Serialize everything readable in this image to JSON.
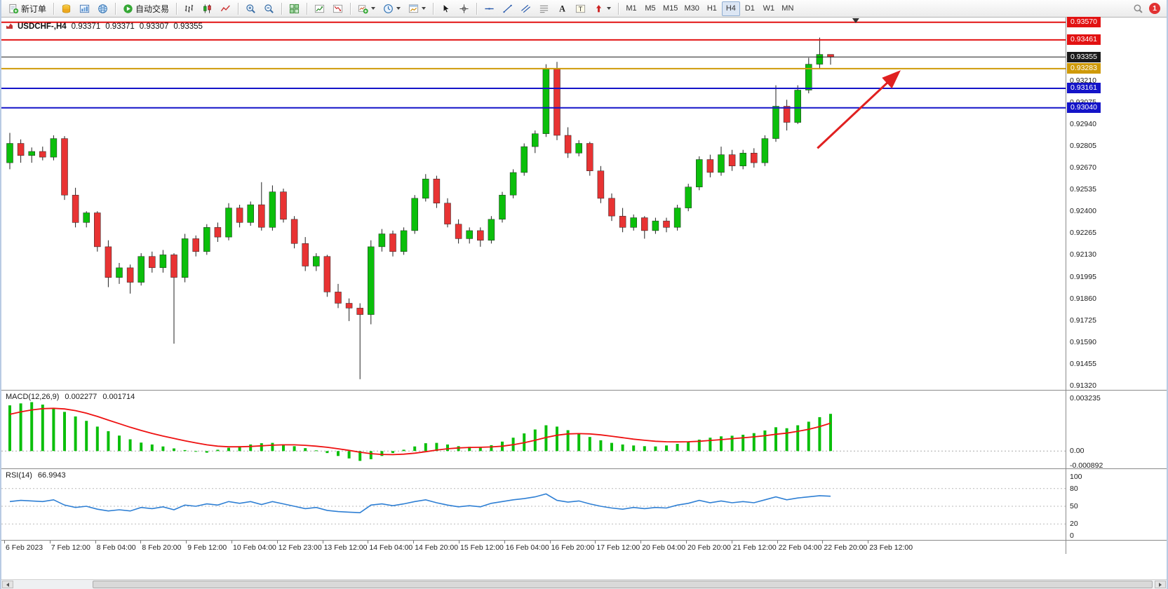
{
  "toolbar": {
    "notification_count": "1",
    "groups": [
      {
        "items": [
          {
            "name": "new-order-button",
            "icon": "new-order",
            "label": "新订单"
          }
        ]
      },
      {
        "items": [
          {
            "name": "market-watch-button",
            "icon": "coins"
          },
          {
            "name": "data-window-button",
            "icon": "chart-blue"
          },
          {
            "name": "web-community-button",
            "icon": "globe"
          }
        ]
      },
      {
        "items": [
          {
            "name": "autotrading-button",
            "icon": "play",
            "label": "自动交易"
          }
        ]
      },
      {
        "items": [
          {
            "name": "bar-chart-button",
            "icon": "bars"
          },
          {
            "name": "candlestick-chart-button",
            "icon": "candles"
          },
          {
            "name": "line-chart-button",
            "icon": "linechart"
          }
        ]
      },
      {
        "items": [
          {
            "name": "zoom-in-button",
            "icon": "zoom-in"
          },
          {
            "name": "zoom-out-button",
            "icon": "zoom-out"
          }
        ]
      },
      {
        "items": [
          {
            "name": "tile-windows-button",
            "icon": "tiles"
          }
        ]
      },
      {
        "items": [
          {
            "name": "indicator-up-button",
            "icon": "ind-up"
          },
          {
            "name": "indicator-down-button",
            "icon": "ind-down"
          }
        ]
      },
      {
        "items": [
          {
            "name": "add-indicator-button",
            "icon": "add-ind",
            "dropdown": true
          },
          {
            "name": "periods-button",
            "icon": "clock",
            "dropdown": true
          },
          {
            "name": "templates-button",
            "icon": "template",
            "dropdown": true
          }
        ]
      },
      {
        "items": [
          {
            "name": "cursor-button",
            "icon": "cursor"
          },
          {
            "name": "crosshair-button",
            "icon": "crosshair"
          }
        ]
      },
      {
        "items": [
          {
            "name": "hline-tool-button",
            "icon": "hline"
          },
          {
            "name": "trendline-tool-button",
            "icon": "trendline"
          },
          {
            "name": "channel-tool-button",
            "icon": "channel"
          },
          {
            "name": "fibonacci-tool-button",
            "icon": "fibo"
          },
          {
            "name": "text-tool-button",
            "icon": "text-a"
          },
          {
            "name": "label-tool-button",
            "icon": "label-t"
          },
          {
            "name": "arrows-tool-button",
            "icon": "arrow-tool",
            "dropdown": true
          }
        ]
      },
      {
        "items": [
          {
            "name": "tf-m1-button",
            "label": "M1"
          },
          {
            "name": "tf-m5-button",
            "label": "M5"
          },
          {
            "name": "tf-m15-button",
            "label": "M15"
          },
          {
            "name": "tf-m30-button",
            "label": "M30"
          },
          {
            "name": "tf-h1-button",
            "label": "H1"
          },
          {
            "name": "tf-h4-button",
            "label": "H4",
            "active": true
          },
          {
            "name": "tf-d1-button",
            "label": "D1"
          },
          {
            "name": "tf-w1-button",
            "label": "W1"
          },
          {
            "name": "tf-mn-button",
            "label": "MN"
          }
        ]
      }
    ]
  },
  "chart": {
    "info": {
      "symbol": "USDCHF-,H4",
      "open": "0.93371",
      "high": "0.93371",
      "low": "0.93307",
      "close": "0.93355"
    }
  },
  "chart_data": {
    "type": "candlestick",
    "symbol": "USDCHF-",
    "timeframe": "H4",
    "style": {
      "bull": "#0bbf0b",
      "bear": "#e83333",
      "wick": "#222222"
    },
    "price_range": {
      "max": 0.93582,
      "min": 0.9132
    },
    "price_ticks": [
      "0.93210",
      "0.93075",
      "0.92940",
      "0.92805",
      "0.92670",
      "0.92535",
      "0.92400",
      "0.92265",
      "0.92130",
      "0.91995",
      "0.91860",
      "0.91725",
      "0.91590",
      "0.91455",
      "0.91320"
    ],
    "price_badges": [
      {
        "label": "0.93570",
        "price": 0.9357,
        "color": "#e21212"
      },
      {
        "label": "0.93461",
        "price": 0.93461,
        "color": "#e21212"
      },
      {
        "label": "0.93355",
        "price": 0.93355,
        "color": "#1a1a1a"
      },
      {
        "label": "0.93283",
        "price": 0.93283,
        "color": "#cf9a08"
      },
      {
        "label": "0.93161",
        "price": 0.93161,
        "color": "#1414c8"
      },
      {
        "label": "0.93040",
        "price": 0.9304,
        "color": "#1414c8"
      }
    ],
    "hlines": [
      {
        "price": 0.9357,
        "color": "#e21212",
        "width": 2
      },
      {
        "price": 0.93461,
        "color": "#e21212",
        "width": 2
      },
      {
        "price": 0.93355,
        "color": "#1a1a1a",
        "width": 1
      },
      {
        "price": 0.93283,
        "color": "#cf9a08",
        "width": 2
      },
      {
        "price": 0.93161,
        "color": "#1414c8",
        "width": 2
      },
      {
        "price": 0.9304,
        "color": "#1414c8",
        "width": 2
      }
    ],
    "shift_marker_index": 77.3,
    "annotations": [
      {
        "type": "arrow",
        "color": "#e02020",
        "from": {
          "index": 73.8,
          "price": 0.9279
        },
        "to": {
          "index": 81.2,
          "price": 0.9326
        }
      }
    ],
    "x_labels": [
      "6 Feb 2023",
      "7 Feb 12:00",
      "8 Feb 04:00",
      "8 Feb 20:00",
      "9 Feb 12:00",
      "10 Feb 04:00",
      "12 Feb 23:00",
      "13 Feb 12:00",
      "14 Feb 04:00",
      "14 Feb 20:00",
      "15 Feb 12:00",
      "16 Feb 04:00",
      "16 Feb 20:00",
      "17 Feb 12:00",
      "20 Feb 04:00",
      "20 Feb 20:00",
      "21 Feb 12:00",
      "22 Feb 04:00",
      "22 Feb 20:00",
      "23 Feb 12:00"
    ],
    "candles": [
      [
        0.927,
        0.92885,
        0.9266,
        0.9282
      ],
      [
        0.9282,
        0.92845,
        0.927,
        0.92745
      ],
      [
        0.92745,
        0.92795,
        0.927,
        0.9277
      ],
      [
        0.9277,
        0.928,
        0.92715,
        0.92735
      ],
      [
        0.92735,
        0.9287,
        0.92715,
        0.9285
      ],
      [
        0.9285,
        0.92865,
        0.9247,
        0.925
      ],
      [
        0.925,
        0.92545,
        0.923,
        0.9233
      ],
      [
        0.9233,
        0.924,
        0.923,
        0.9239
      ],
      [
        0.9239,
        0.924,
        0.9215,
        0.9218
      ],
      [
        0.9218,
        0.9222,
        0.9193,
        0.9199
      ],
      [
        0.9199,
        0.9208,
        0.9195,
        0.9205
      ],
      [
        0.9205,
        0.9207,
        0.9189,
        0.9196
      ],
      [
        0.9196,
        0.9214,
        0.9194,
        0.9212
      ],
      [
        0.9212,
        0.9215,
        0.9202,
        0.9205
      ],
      [
        0.9205,
        0.9216,
        0.9202,
        0.9213
      ],
      [
        0.9213,
        0.9214,
        0.9158,
        0.9199
      ],
      [
        0.9199,
        0.9226,
        0.9196,
        0.9223
      ],
      [
        0.9223,
        0.9225,
        0.9212,
        0.9215
      ],
      [
        0.9215,
        0.9232,
        0.9213,
        0.923
      ],
      [
        0.923,
        0.9233,
        0.9221,
        0.9224
      ],
      [
        0.9224,
        0.9245,
        0.9222,
        0.9242
      ],
      [
        0.9242,
        0.9244,
        0.923,
        0.9233
      ],
      [
        0.9233,
        0.9246,
        0.9231,
        0.9244
      ],
      [
        0.9244,
        0.9258,
        0.9228,
        0.923
      ],
      [
        0.923,
        0.9256,
        0.9228,
        0.9252
      ],
      [
        0.9252,
        0.9254,
        0.9233,
        0.9235
      ],
      [
        0.9235,
        0.9237,
        0.9217,
        0.922
      ],
      [
        0.922,
        0.9224,
        0.9203,
        0.9206
      ],
      [
        0.9206,
        0.9214,
        0.9203,
        0.9212
      ],
      [
        0.9212,
        0.9213,
        0.9187,
        0.919
      ],
      [
        0.919,
        0.9195,
        0.918,
        0.9183
      ],
      [
        0.9183,
        0.9186,
        0.9172,
        0.918
      ],
      [
        0.918,
        0.9183,
        0.9136,
        0.9176
      ],
      [
        0.9176,
        0.9222,
        0.917,
        0.9218
      ],
      [
        0.9218,
        0.9229,
        0.9215,
        0.9226
      ],
      [
        0.9226,
        0.9228,
        0.9212,
        0.9215
      ],
      [
        0.9215,
        0.923,
        0.9213,
        0.9228
      ],
      [
        0.9228,
        0.925,
        0.9226,
        0.9248
      ],
      [
        0.9248,
        0.9263,
        0.9246,
        0.926
      ],
      [
        0.926,
        0.9262,
        0.9242,
        0.9245
      ],
      [
        0.9245,
        0.9248,
        0.923,
        0.9232
      ],
      [
        0.9232,
        0.9235,
        0.922,
        0.9223
      ],
      [
        0.9223,
        0.923,
        0.922,
        0.9228
      ],
      [
        0.9228,
        0.923,
        0.9218,
        0.9222
      ],
      [
        0.9222,
        0.9237,
        0.922,
        0.9235
      ],
      [
        0.9235,
        0.9252,
        0.9233,
        0.925
      ],
      [
        0.925,
        0.9266,
        0.9248,
        0.9264
      ],
      [
        0.9264,
        0.9282,
        0.9262,
        0.928
      ],
      [
        0.928,
        0.929,
        0.9276,
        0.9288
      ],
      [
        0.9288,
        0.9331,
        0.9286,
        0.9328
      ],
      [
        0.9328,
        0.93325,
        0.9284,
        0.9287
      ],
      [
        0.9287,
        0.9292,
        0.9273,
        0.9276
      ],
      [
        0.9276,
        0.9284,
        0.9274,
        0.9282
      ],
      [
        0.9282,
        0.9283,
        0.9262,
        0.9265
      ],
      [
        0.9265,
        0.9268,
        0.9245,
        0.9248
      ],
      [
        0.9248,
        0.9251,
        0.9234,
        0.9237
      ],
      [
        0.9237,
        0.9242,
        0.9227,
        0.923
      ],
      [
        0.923,
        0.9238,
        0.9228,
        0.9236
      ],
      [
        0.9236,
        0.9237,
        0.9223,
        0.9228
      ],
      [
        0.9228,
        0.9236,
        0.9226,
        0.9234
      ],
      [
        0.9234,
        0.9236,
        0.9227,
        0.923
      ],
      [
        0.923,
        0.9244,
        0.9228,
        0.9242
      ],
      [
        0.9242,
        0.9257,
        0.924,
        0.9255
      ],
      [
        0.9255,
        0.9274,
        0.9253,
        0.9272
      ],
      [
        0.9272,
        0.9275,
        0.9261,
        0.9264
      ],
      [
        0.9264,
        0.928,
        0.9262,
        0.9275
      ],
      [
        0.9275,
        0.9278,
        0.9265,
        0.9268
      ],
      [
        0.9268,
        0.9278,
        0.9266,
        0.9276
      ],
      [
        0.9276,
        0.9279,
        0.9267,
        0.927
      ],
      [
        0.927,
        0.9287,
        0.9268,
        0.9285
      ],
      [
        0.9285,
        0.9318,
        0.9283,
        0.9305
      ],
      [
        0.9305,
        0.9309,
        0.929,
        0.9295
      ],
      [
        0.9295,
        0.9318,
        0.9294,
        0.9315
      ],
      [
        0.9315,
        0.9335,
        0.9313,
        0.9331
      ],
      [
        0.9331,
        0.93475,
        0.9328,
        0.93371
      ],
      [
        0.93371,
        0.93371,
        0.93307,
        0.93355
      ]
    ],
    "macd": {
      "name": "MACD(12,26,9)",
      "value": "0.002277",
      "signal_value": "0.001714",
      "histogram_color": "#0bbf0b",
      "signal_color": "#ee1111",
      "scale": {
        "max": 0.003235,
        "min": -0.000892
      },
      "axis": [
        {
          "label": "0.003235",
          "value": 0.003235
        },
        {
          "label": "0.00",
          "value": 0
        },
        {
          "label": "-0.000892",
          "value": -0.000892
        }
      ],
      "histogram": [
        0.0028,
        0.00292,
        0.003,
        0.00285,
        0.00262,
        0.0024,
        0.00212,
        0.00185,
        0.0015,
        0.00122,
        0.00095,
        0.00072,
        0.00052,
        0.0004,
        0.00028,
        0.00016,
        6e-05,
        -4e-05,
        -0.0001,
        8e-05,
        0.0002,
        0.0003,
        0.0004,
        0.00048,
        0.0005,
        0.00042,
        0.0003,
        0.00018,
        4e-05,
        -0.00012,
        -0.0003,
        -0.00045,
        -0.0006,
        -0.0005,
        -0.0003,
        -0.00012,
        8e-05,
        0.00028,
        0.00048,
        0.0005,
        0.0004,
        0.0003,
        0.00026,
        0.0002,
        0.00036,
        0.00058,
        0.00082,
        0.00108,
        0.00132,
        0.00158,
        0.0015,
        0.00128,
        0.00106,
        0.00086,
        0.00066,
        0.0005,
        0.0004,
        0.00034,
        0.0003,
        0.00028,
        0.00034,
        0.00044,
        0.00056,
        0.0007,
        0.00082,
        0.0009,
        0.00094,
        0.001,
        0.0011,
        0.00126,
        0.00146,
        0.0014,
        0.00158,
        0.0018,
        0.00208,
        0.00228
      ],
      "signal": [
        0.00225,
        0.0024,
        0.00252,
        0.0026,
        0.00262,
        0.00258,
        0.00248,
        0.00232,
        0.00212,
        0.0019,
        0.00168,
        0.00146,
        0.00126,
        0.00108,
        0.00092,
        0.00077,
        0.00063,
        0.0005,
        0.00038,
        0.0003,
        0.00026,
        0.00026,
        0.00028,
        0.00032,
        0.00036,
        0.00038,
        0.00038,
        0.00035,
        0.0003,
        0.00023,
        0.00014,
        4e-05,
        -7e-05,
        -0.00016,
        -0.00021,
        -0.00022,
        -0.00019,
        -0.00013,
        -4e-05,
        6e-05,
        0.00014,
        0.00019,
        0.00022,
        0.00023,
        0.00025,
        0.0003,
        0.00039,
        0.00051,
        0.00066,
        0.00083,
        0.00097,
        0.00105,
        0.00107,
        0.00105,
        0.00099,
        0.00091,
        0.00082,
        0.00073,
        0.00066,
        0.0006,
        0.00057,
        0.00056,
        0.00057,
        0.0006,
        0.00065,
        0.0007,
        0.00076,
        0.00081,
        0.00087,
        0.00094,
        0.00103,
        0.0011,
        0.00121,
        0.00133,
        0.0015,
        0.00171
      ]
    },
    "rsi": {
      "name": "RSI(14)",
      "value": "66.9943",
      "line_color": "#2e7fd4",
      "levels": [
        80,
        50,
        20
      ],
      "axis": [
        {
          "label": "100",
          "value": 100
        },
        {
          "label": "80",
          "value": 80
        },
        {
          "label": "50",
          "value": 50
        },
        {
          "label": "20",
          "value": 20
        },
        {
          "label": "0",
          "value": 0
        }
      ],
      "values": [
        58,
        60,
        59,
        58,
        61,
        52,
        48,
        50,
        45,
        42,
        44,
        42,
        48,
        46,
        49,
        44,
        52,
        50,
        54,
        52,
        58,
        55,
        58,
        53,
        58,
        54,
        50,
        46,
        48,
        43,
        41,
        40,
        39,
        52,
        54,
        51,
        54,
        58,
        61,
        56,
        52,
        49,
        51,
        49,
        55,
        58,
        61,
        63,
        66,
        71,
        60,
        57,
        59,
        54,
        50,
        47,
        45,
        48,
        46,
        48,
        47,
        52,
        55,
        60,
        56,
        59,
        56,
        58,
        56,
        61,
        66,
        61,
        64,
        66,
        68,
        66.99
      ]
    }
  }
}
